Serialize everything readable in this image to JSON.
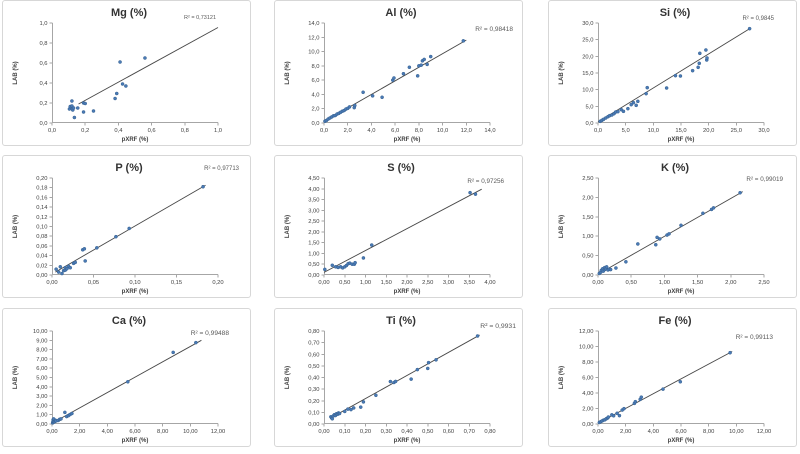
{
  "page": {
    "background": "#ffffff"
  },
  "style": {
    "point_color": "#4a7ab5",
    "point_edge_color": "#35608f",
    "trend_color": "#474747",
    "axis_color": "#a6a6a6",
    "tick_text_color": "#404040",
    "title_color": "#333333",
    "r2_color": "#595959",
    "panel_border": "#d7d7d7"
  },
  "chart_data": [
    {
      "type": "scatter",
      "id": "mg",
      "title": "Mg (%)",
      "r2_label": "R² = 0,73121",
      "xlabel": "pXRF (%)",
      "ylabel": "LAB (%)",
      "xlim": [
        0,
        1.0
      ],
      "xstep": 0.2,
      "xdec": 1,
      "ylim": [
        0,
        1.0
      ],
      "ystep": 0.2,
      "ydec": 1,
      "grid": false,
      "r2_x": 213,
      "r2_y": 18,
      "r2_size": 5.5,
      "trendline": [
        [
          0.16,
          0.19
        ],
        [
          1.0,
          0.955
        ]
      ],
      "points": [
        [
          0.105,
          0.14
        ],
        [
          0.115,
          0.155
        ],
        [
          0.125,
          0.13
        ],
        [
          0.11,
          0.165
        ],
        [
          0.12,
          0.17
        ],
        [
          0.13,
          0.15
        ],
        [
          0.12,
          0.22
        ],
        [
          0.135,
          0.055
        ],
        [
          0.155,
          0.15
        ],
        [
          0.19,
          0.2
        ],
        [
          0.2,
          0.195
        ],
        [
          0.19,
          0.11
        ],
        [
          0.25,
          0.12
        ],
        [
          0.38,
          0.245
        ],
        [
          0.39,
          0.295
        ],
        [
          0.41,
          0.61
        ],
        [
          0.425,
          0.39
        ],
        [
          0.445,
          0.37
        ],
        [
          0.56,
          0.65
        ]
      ]
    },
    {
      "type": "scatter",
      "id": "al",
      "title": "Al (%)",
      "r2_label": "R² = 0,98418",
      "xlabel": "pXRF (%)",
      "ylabel": "LAB (%)",
      "xlim": [
        0,
        14.0
      ],
      "xstep": 2.0,
      "xdec": 1,
      "ylim": [
        0,
        14.0
      ],
      "ystep": 2.0,
      "ydec": 1,
      "grid": false,
      "r2_x": 238,
      "r2_y": 30,
      "r2_size": 6.5,
      "trendline": [
        [
          0.0,
          0.2
        ],
        [
          12.0,
          11.6
        ]
      ],
      "points": [
        [
          0.08,
          0.25
        ],
        [
          0.2,
          0.35
        ],
        [
          0.35,
          0.55
        ],
        [
          0.5,
          0.7
        ],
        [
          0.65,
          0.85
        ],
        [
          0.8,
          1.0
        ],
        [
          0.95,
          1.05
        ],
        [
          1.1,
          1.25
        ],
        [
          1.25,
          1.35
        ],
        [
          1.4,
          1.5
        ],
        [
          1.55,
          1.65
        ],
        [
          1.7,
          1.75
        ],
        [
          1.85,
          1.95
        ],
        [
          2.0,
          2.05
        ],
        [
          2.15,
          2.25
        ],
        [
          2.55,
          2.15
        ],
        [
          2.6,
          2.45
        ],
        [
          3.3,
          4.3
        ],
        [
          4.1,
          3.8
        ],
        [
          4.9,
          3.6
        ],
        [
          5.8,
          6.0
        ],
        [
          5.9,
          6.3
        ],
        [
          6.7,
          6.9
        ],
        [
          7.2,
          7.8
        ],
        [
          7.9,
          6.6
        ],
        [
          8.0,
          8.0
        ],
        [
          8.2,
          8.1
        ],
        [
          8.3,
          8.7
        ],
        [
          8.45,
          8.9
        ],
        [
          8.7,
          8.2
        ],
        [
          9.0,
          9.3
        ],
        [
          11.75,
          11.5
        ]
      ]
    },
    {
      "type": "scatter",
      "id": "si",
      "title": "Si (%)",
      "r2_label": "R² = 0,9845",
      "xlabel": "pXRF (%)",
      "ylabel": "LAB (%)",
      "xlim": [
        0,
        30.0
      ],
      "xstep": 5.0,
      "xdec": 1,
      "ylim": [
        0,
        30.0
      ],
      "ystep": 5.0,
      "ydec": 1,
      "grid": false,
      "r2_x": 225,
      "r2_y": 19,
      "r2_size": 6.0,
      "trendline": [
        [
          0.0,
          0.3
        ],
        [
          27.5,
          28.4
        ]
      ],
      "points": [
        [
          0.4,
          0.5
        ],
        [
          0.7,
          0.8
        ],
        [
          1.0,
          1.1
        ],
        [
          1.4,
          1.5
        ],
        [
          1.8,
          1.9
        ],
        [
          2.1,
          2.2
        ],
        [
          2.5,
          2.4
        ],
        [
          2.9,
          2.8
        ],
        [
          3.2,
          3.3
        ],
        [
          3.6,
          3.4
        ],
        [
          4.2,
          4.0
        ],
        [
          4.6,
          3.5
        ],
        [
          5.4,
          4.3
        ],
        [
          6.0,
          5.5
        ],
        [
          6.4,
          6.1
        ],
        [
          6.9,
          5.3
        ],
        [
          7.2,
          6.5
        ],
        [
          8.7,
          8.8
        ],
        [
          8.9,
          10.6
        ],
        [
          12.4,
          10.5
        ],
        [
          14.0,
          14.2
        ],
        [
          14.9,
          14.1
        ],
        [
          17.1,
          15.7
        ],
        [
          18.1,
          16.7
        ],
        [
          18.3,
          17.9
        ],
        [
          18.4,
          20.9
        ],
        [
          19.5,
          21.9
        ],
        [
          19.65,
          18.9
        ],
        [
          19.7,
          19.5
        ],
        [
          27.4,
          28.3
        ]
      ]
    },
    {
      "type": "scatter",
      "id": "p",
      "title": "P (%)",
      "r2_label": "R² = 0,97713",
      "xlabel": "pXRF (%)",
      "ylabel": "LAB (%)",
      "xlim": [
        0,
        0.2
      ],
      "xstep": 0.05,
      "xdec": 2,
      "ylim": [
        0,
        0.2
      ],
      "ystep": 0.02,
      "ydec": 2,
      "grid": false,
      "r2_x": 236,
      "r2_y": 14,
      "r2_size": 6.0,
      "trendline": [
        [
          0.004,
          0.006
        ],
        [
          0.185,
          0.185
        ]
      ],
      "points": [
        [
          0.005,
          0.012
        ],
        [
          0.008,
          0.006
        ],
        [
          0.01,
          0.017
        ],
        [
          0.012,
          0.003
        ],
        [
          0.014,
          0.009
        ],
        [
          0.016,
          0.01
        ],
        [
          0.016,
          0.015
        ],
        [
          0.018,
          0.013
        ],
        [
          0.02,
          0.018
        ],
        [
          0.022,
          0.015
        ],
        [
          0.026,
          0.024
        ],
        [
          0.028,
          0.026
        ],
        [
          0.037,
          0.052
        ],
        [
          0.039,
          0.054
        ],
        [
          0.04,
          0.029
        ],
        [
          0.054,
          0.056
        ],
        [
          0.077,
          0.079
        ],
        [
          0.093,
          0.096
        ],
        [
          0.182,
          0.182
        ]
      ]
    },
    {
      "type": "scatter",
      "id": "s",
      "title": "S (%)",
      "r2_label": "R² = 0,97256",
      "xlabel": "pXRF (%)",
      "ylabel": "LAB (%)",
      "xlim": [
        0,
        4.0
      ],
      "xstep": 0.5,
      "xdec": 2,
      "ylim": [
        0,
        4.5
      ],
      "ystep": 0.5,
      "ydec": 2,
      "grid": false,
      "r2_x": 229,
      "r2_y": 27,
      "r2_size": 6.3,
      "trendline": [
        [
          0.0,
          0.12
        ],
        [
          3.8,
          3.98
        ]
      ],
      "points": [
        [
          0.02,
          0.26
        ],
        [
          0.2,
          0.45
        ],
        [
          0.28,
          0.38
        ],
        [
          0.34,
          0.35
        ],
        [
          0.4,
          0.38
        ],
        [
          0.45,
          0.33
        ],
        [
          0.5,
          0.38
        ],
        [
          0.54,
          0.44
        ],
        [
          0.58,
          0.52
        ],
        [
          0.62,
          0.55
        ],
        [
          0.68,
          0.5
        ],
        [
          0.73,
          0.5
        ],
        [
          0.75,
          0.57
        ],
        [
          0.95,
          0.79
        ],
        [
          1.15,
          1.39
        ],
        [
          3.52,
          3.82
        ],
        [
          3.65,
          3.75
        ]
      ]
    },
    {
      "type": "scatter",
      "id": "k",
      "title": "K (%)",
      "r2_label": "R² = 0,99019",
      "xlabel": "pXRF (%)",
      "ylabel": "LAB (%)",
      "xlim": [
        0,
        2.5
      ],
      "xstep": 0.5,
      "xdec": 2,
      "ylim": [
        0,
        2.5
      ],
      "ystep": 0.5,
      "ydec": 2,
      "grid": false,
      "r2_x": 234,
      "r2_y": 25,
      "r2_size": 6.3,
      "trendline": [
        [
          0.0,
          0.02
        ],
        [
          2.18,
          2.15
        ]
      ],
      "points": [
        [
          0.02,
          0.04
        ],
        [
          0.04,
          0.07
        ],
        [
          0.05,
          0.12
        ],
        [
          0.07,
          0.16
        ],
        [
          0.08,
          0.1
        ],
        [
          0.1,
          0.14
        ],
        [
          0.1,
          0.19
        ],
        [
          0.12,
          0.16
        ],
        [
          0.13,
          0.21
        ],
        [
          0.15,
          0.13
        ],
        [
          0.17,
          0.15
        ],
        [
          0.19,
          0.14
        ],
        [
          0.27,
          0.18
        ],
        [
          0.42,
          0.34
        ],
        [
          0.6,
          0.8
        ],
        [
          0.87,
          0.78
        ],
        [
          0.89,
          0.97
        ],
        [
          0.93,
          0.93
        ],
        [
          1.04,
          1.03
        ],
        [
          1.07,
          1.06
        ],
        [
          1.25,
          1.28
        ],
        [
          1.58,
          1.59
        ],
        [
          1.71,
          1.69
        ],
        [
          1.74,
          1.73
        ],
        [
          2.14,
          2.12
        ]
      ]
    },
    {
      "type": "scatter",
      "id": "ca",
      "title": "Ca (%)",
      "r2_label": "R² = 0,99488",
      "xlabel": "pXRF (%)",
      "ylabel": "LAB (%)",
      "xlim": [
        0,
        12.0
      ],
      "xstep": 2.0,
      "xdec": 2,
      "ylim": [
        0,
        10.0
      ],
      "ystep": 1.0,
      "ydec": 2,
      "grid": false,
      "r2_x": 226,
      "r2_y": 26,
      "r2_size": 6.6,
      "trendline": [
        [
          0.0,
          0.08
        ],
        [
          10.8,
          9.0
        ]
      ],
      "points": [
        [
          0.05,
          0.12
        ],
        [
          0.07,
          0.25
        ],
        [
          0.08,
          0.45
        ],
        [
          0.1,
          0.3
        ],
        [
          0.12,
          0.55
        ],
        [
          0.15,
          0.22
        ],
        [
          0.2,
          0.28
        ],
        [
          0.25,
          0.4
        ],
        [
          0.3,
          0.33
        ],
        [
          0.45,
          0.38
        ],
        [
          0.55,
          0.5
        ],
        [
          0.65,
          0.55
        ],
        [
          0.93,
          1.25
        ],
        [
          1.06,
          0.8
        ],
        [
          1.19,
          0.9
        ],
        [
          1.31,
          1.02
        ],
        [
          1.44,
          1.13
        ],
        [
          5.48,
          4.54
        ],
        [
          8.76,
          7.7
        ],
        [
          10.4,
          8.75
        ]
      ]
    },
    {
      "type": "scatter",
      "id": "ti",
      "title": "Ti (%)",
      "r2_label": "R² = 0,9931",
      "xlabel": "pXRF (%)",
      "ylabel": "LAB (%)",
      "xlim": [
        0,
        0.8
      ],
      "xstep": 0.1,
      "xdec": 2,
      "ylim": [
        0,
        0.8
      ],
      "ystep": 0.1,
      "ydec": 2,
      "grid": false,
      "r2_x": 241,
      "r2_y": 19,
      "r2_size": 6.8,
      "trendline": [
        [
          0.03,
          0.05
        ],
        [
          0.75,
          0.765
        ]
      ],
      "points": [
        [
          0.033,
          0.062
        ],
        [
          0.037,
          0.052
        ],
        [
          0.04,
          0.045
        ],
        [
          0.045,
          0.07
        ],
        [
          0.05,
          0.08
        ],
        [
          0.055,
          0.073
        ],
        [
          0.06,
          0.088
        ],
        [
          0.065,
          0.083
        ],
        [
          0.07,
          0.095
        ],
        [
          0.075,
          0.09
        ],
        [
          0.1,
          0.108
        ],
        [
          0.115,
          0.128
        ],
        [
          0.13,
          0.124
        ],
        [
          0.143,
          0.138
        ],
        [
          0.177,
          0.145
        ],
        [
          0.19,
          0.19
        ],
        [
          0.25,
          0.247
        ],
        [
          0.32,
          0.365
        ],
        [
          0.337,
          0.357
        ],
        [
          0.345,
          0.366
        ],
        [
          0.42,
          0.386
        ],
        [
          0.45,
          0.468
        ],
        [
          0.5,
          0.478
        ],
        [
          0.504,
          0.528
        ],
        [
          0.54,
          0.552
        ],
        [
          0.74,
          0.757
        ]
      ]
    },
    {
      "type": "scatter",
      "id": "fe",
      "title": "Fe (%)",
      "r2_label": "R² = 0,99113",
      "xlabel": "pXRF (%)",
      "ylabel": "LAB (%)",
      "xlim": [
        0,
        12.0
      ],
      "xstep": 2.0,
      "xdec": 2,
      "ylim": [
        0,
        12.0
      ],
      "ystep": 2.0,
      "ydec": 2,
      "grid": false,
      "r2_x": 224,
      "r2_y": 30,
      "r2_size": 6.5,
      "trendline": [
        [
          0.0,
          0.1
        ],
        [
          9.7,
          9.35
        ]
      ],
      "points": [
        [
          0.1,
          0.2
        ],
        [
          0.2,
          0.3
        ],
        [
          0.3,
          0.4
        ],
        [
          0.4,
          0.5
        ],
        [
          0.5,
          0.55
        ],
        [
          0.6,
          0.68
        ],
        [
          0.7,
          0.78
        ],
        [
          0.75,
          0.9
        ],
        [
          1.0,
          1.18
        ],
        [
          1.13,
          1.06
        ],
        [
          1.38,
          1.38
        ],
        [
          1.55,
          1.08
        ],
        [
          1.75,
          1.8
        ],
        [
          1.88,
          1.98
        ],
        [
          2.63,
          2.66
        ],
        [
          2.7,
          2.88
        ],
        [
          3.05,
          3.18
        ],
        [
          3.13,
          3.46
        ],
        [
          4.7,
          4.5
        ],
        [
          5.95,
          5.45
        ],
        [
          9.55,
          9.2
        ]
      ]
    }
  ]
}
